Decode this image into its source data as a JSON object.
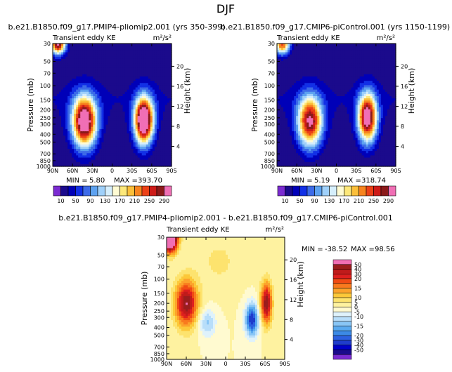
{
  "main_title": "DJF",
  "colors": {
    "ke_palette": [
      "#7b2bd1",
      "#1b0a8c",
      "#0000b8",
      "#1230e6",
      "#3d6be8",
      "#5da2f0",
      "#9fd0fa",
      "#d5eefc",
      "#fffbd3",
      "#fde87a",
      "#fbbf3a",
      "#f7841f",
      "#ec4117",
      "#cd1b18",
      "#8b1a1a",
      "#f06fb5"
    ],
    "diff_palette": [
      "#7b2bd1",
      "#1b0a8c",
      "#0000c8",
      "#1f3ccc",
      "#2c60e0",
      "#3c8ae6",
      "#5aaaf0",
      "#89c6f6",
      "#b8defa",
      "#dff2fb",
      "#fffad0",
      "#fef2a0",
      "#fde36e",
      "#fcc839",
      "#fca22b",
      "#f97a1e",
      "#f04b14",
      "#de1f1f",
      "#c01b1b",
      "#9a1d1d",
      "#f06fb5"
    ]
  },
  "chart_data": [
    {
      "type": "contour",
      "id": "panel1",
      "title": "b.e21.B1850.f09_g17.PMIP4-pliomip2.001  (yrs 350-399)",
      "subtitle_left": "Transient eddy KE",
      "subtitle_right": "m²/s²",
      "ylabel": "Pressure (mb)",
      "ylabel_right": "Height (km)",
      "x_ticks": [
        "90N",
        "60N",
        "30N",
        "0",
        "30S",
        "60S",
        "90S"
      ],
      "x_tick_values": [
        90,
        60,
        30,
        0,
        -30,
        -60,
        -90
      ],
      "y_ticks": [
        "30",
        "50",
        "70",
        "100",
        "150",
        "200",
        "250",
        "300",
        "400",
        "500",
        "700",
        "850",
        "1000"
      ],
      "y_tick_values": [
        30,
        50,
        70,
        100,
        150,
        200,
        250,
        300,
        400,
        500,
        700,
        850,
        1000
      ],
      "height_ticks": [
        "20",
        "16",
        "12",
        "8",
        "4"
      ],
      "height_tick_values": [
        20,
        16,
        12,
        8,
        4
      ],
      "min_label": "MIN =",
      "min_value": "5.80",
      "max_label": "MAX =",
      "max_value": "393.70",
      "colorbar_labels": [
        "10",
        "50",
        "90",
        "130",
        "170",
        "210",
        "250",
        "290"
      ],
      "colorbar_levels": [
        10,
        30,
        50,
        70,
        90,
        110,
        130,
        150,
        170,
        190,
        210,
        230,
        250,
        270,
        290
      ],
      "features": [
        {
          "lat": 42,
          "p": 280,
          "amp": 330,
          "slat": 13,
          "slogp": 0.22
        },
        {
          "lat": -48,
          "p": 270,
          "amp": 370,
          "slat": 10,
          "slogp": 0.2
        },
        {
          "lat": 82,
          "p": 30,
          "amp": 300,
          "slat": 8,
          "slogp": 0.09
        }
      ]
    },
    {
      "type": "contour",
      "id": "panel2",
      "title": "b.e21.B1850.f09_g17.CMIP6-piControl.001  (yrs 1150-1199)",
      "subtitle_left": "Transient eddy KE",
      "subtitle_right": "m²/s²",
      "ylabel": "Pressure (mb)",
      "ylabel_right": "Height (km)",
      "x_ticks": [
        "90N",
        "60N",
        "30N",
        "0",
        "30S",
        "60S",
        "90S"
      ],
      "x_tick_values": [
        90,
        60,
        30,
        0,
        -30,
        -60,
        -90
      ],
      "y_ticks": [
        "30",
        "50",
        "70",
        "100",
        "150",
        "200",
        "250",
        "300",
        "400",
        "500",
        "700",
        "850",
        "1000"
      ],
      "y_tick_values": [
        30,
        50,
        70,
        100,
        150,
        200,
        250,
        300,
        400,
        500,
        700,
        850,
        1000
      ],
      "height_ticks": [
        "20",
        "16",
        "12",
        "8",
        "4"
      ],
      "height_tick_values": [
        20,
        16,
        12,
        8,
        4
      ],
      "min_label": "MIN =",
      "min_value": "5.19",
      "max_label": "MAX =",
      "max_value": "318.74",
      "colorbar_labels": [
        "10",
        "50",
        "90",
        "130",
        "170",
        "210",
        "250",
        "290"
      ],
      "colorbar_levels": [
        10,
        30,
        50,
        70,
        90,
        110,
        130,
        150,
        170,
        190,
        210,
        230,
        250,
        270,
        290
      ],
      "features": [
        {
          "lat": 40,
          "p": 280,
          "amp": 280,
          "slat": 13,
          "slogp": 0.22
        },
        {
          "lat": -47,
          "p": 250,
          "amp": 310,
          "slat": 10,
          "slogp": 0.21
        },
        {
          "lat": 82,
          "p": 30,
          "amp": 240,
          "slat": 8,
          "slogp": 0.09
        }
      ]
    },
    {
      "type": "contour",
      "id": "diff",
      "title": "b.e21.B1850.f09_g17.PMIP4-pliomip2.001 - b.e21.B1850.f09_g17.CMIP6-piControl.001",
      "subtitle_left": "Transient eddy KE",
      "subtitle_right": "m²/s²",
      "ylabel": "Pressure (mb)",
      "ylabel_right": "Height (km)",
      "x_ticks": [
        "90N",
        "60N",
        "30N",
        "0",
        "30S",
        "60S",
        "90S"
      ],
      "x_tick_values": [
        90,
        60,
        30,
        0,
        -30,
        -60,
        -90
      ],
      "y_ticks": [
        "30",
        "50",
        "70",
        "100",
        "150",
        "200",
        "250",
        "300",
        "400",
        "500",
        "700",
        "850",
        "1000"
      ],
      "y_tick_values": [
        30,
        50,
        70,
        100,
        150,
        200,
        250,
        300,
        400,
        500,
        700,
        850,
        1000
      ],
      "height_ticks": [
        "20",
        "16",
        "12",
        "8",
        "4"
      ],
      "height_tick_values": [
        20,
        16,
        12,
        8,
        4
      ],
      "min_label": "MIN =",
      "min_value": "-38.52",
      "max_label": "MAX =",
      "max_value": "98.56",
      "colorbar_labels": [
        "50",
        "40",
        "30",
        "20",
        "15",
        "10",
        "5",
        "0",
        "-5",
        "-10",
        "-15",
        "-20",
        "-30",
        "-40",
        "-50"
      ],
      "colorbar_levels": [
        -50,
        -45,
        -40,
        -35,
        -30,
        -25,
        -20,
        -15,
        -10,
        -5,
        0,
        5,
        10,
        15,
        20,
        25,
        30,
        35,
        40,
        45,
        50
      ],
      "features": [
        {
          "lat": 60,
          "p": 200,
          "amp": 45,
          "slat": 12,
          "slogp": 0.2
        },
        {
          "lat": -62,
          "p": 200,
          "amp": 45,
          "slat": 6,
          "slogp": 0.18
        },
        {
          "lat": -40,
          "p": 320,
          "amp": -40,
          "slat": 7,
          "slogp": 0.14
        },
        {
          "lat": 28,
          "p": 350,
          "amp": -16,
          "slat": 9,
          "slogp": 0.12
        },
        {
          "lat": 85,
          "p": 30,
          "amp": 90,
          "slat": 8,
          "slogp": 0.12
        },
        {
          "lat": 10,
          "p": 60,
          "amp": 6,
          "slat": 25,
          "slogp": 0.25
        }
      ]
    }
  ]
}
